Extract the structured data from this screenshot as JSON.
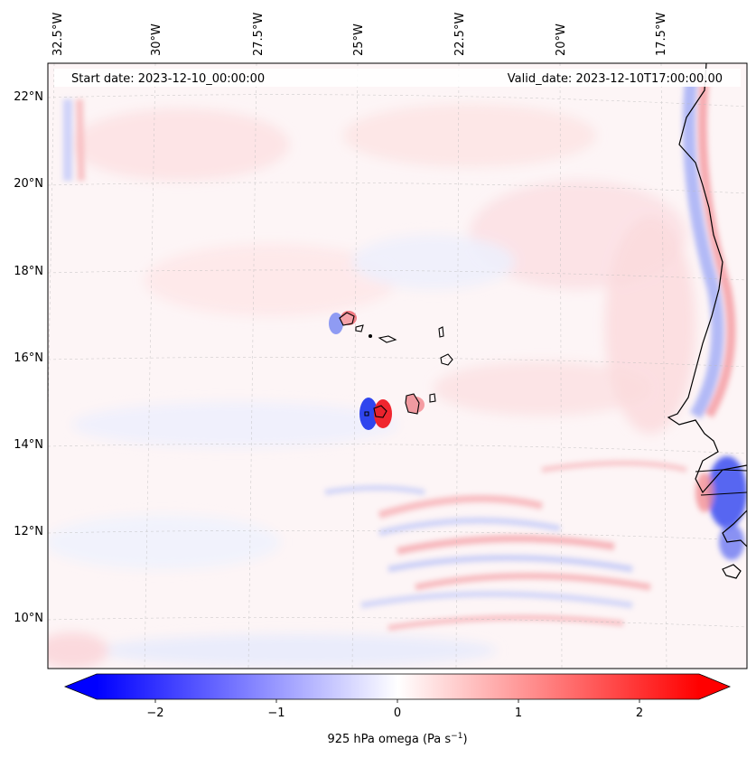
{
  "annotations": {
    "start_date": "Start date: 2023-12-10_00:00:00",
    "valid_date": "Valid_date: 2023-12-10T17:00:00.00"
  },
  "map": {
    "projection": "lambert-conformal-like",
    "lon_ticks": [
      "32.5°W",
      "30°W",
      "27.5°W",
      "25°W",
      "22.5°W",
      "20°W",
      "17.5°W"
    ],
    "lat_ticks": [
      "22°N",
      "20°N",
      "18°N",
      "16°N",
      "14°N",
      "12°N",
      "10°N"
    ],
    "gridlines": true,
    "features": [
      "Cape Verde islands",
      "West African coastline (Mauritania, Senegal, Gambia, Guinea-Bissau)"
    ]
  },
  "colorbar": {
    "label_main": "925 hPa omega (Pa s",
    "label_exp": "−1",
    "label_close": ")",
    "ticks": [
      "−2",
      "−1",
      "0",
      "1",
      "2"
    ],
    "range": [
      -2.6,
      2.6
    ],
    "extend": "both",
    "cmap": "bwr",
    "colors": {
      "negative": "#0000ff",
      "zero": "#ffffff",
      "positive": "#ff0000"
    }
  }
}
